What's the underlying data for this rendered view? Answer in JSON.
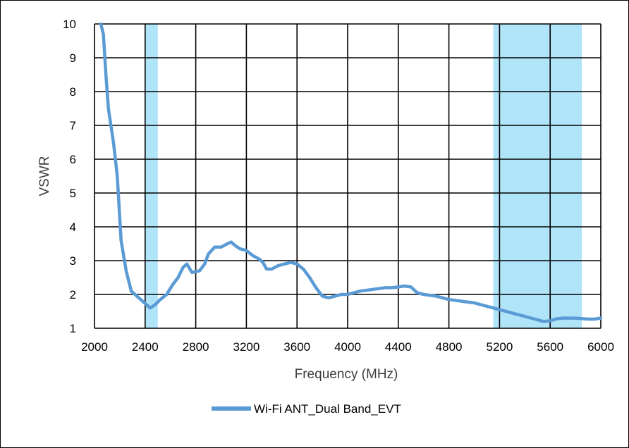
{
  "chart_data": {
    "type": "line",
    "xlabel": "Frequency (MHz)",
    "ylabel": "VSWR",
    "xlim": [
      2000,
      6000
    ],
    "ylim": [
      1,
      10
    ],
    "xticks": [
      2000,
      2400,
      2800,
      3200,
      3600,
      4000,
      4400,
      4800,
      5200,
      5600,
      6000
    ],
    "yticks": [
      1,
      2,
      3,
      4,
      5,
      6,
      7,
      8,
      9,
      10
    ],
    "grid": true,
    "legend_position": "bottom",
    "bands": [
      {
        "x": [
          2400,
          2500
        ],
        "color": "#B0E4F8"
      },
      {
        "x": [
          5150,
          5850
        ],
        "color": "#B0E4F8"
      }
    ],
    "series": [
      {
        "name": "Wi-Fi ANT_Dual Band_EVT",
        "color": "#5B9BD5",
        "x": [
          2050,
          2070,
          2090,
          2110,
          2150,
          2180,
          2210,
          2250,
          2290,
          2350,
          2410,
          2440,
          2480,
          2520,
          2570,
          2620,
          2660,
          2700,
          2730,
          2770,
          2830,
          2870,
          2900,
          2950,
          3000,
          3050,
          3080,
          3110,
          3150,
          3200,
          3250,
          3300,
          3330,
          3360,
          3400,
          3450,
          3500,
          3550,
          3600,
          3650,
          3700,
          3750,
          3800,
          3850,
          3900,
          3950,
          4000,
          4100,
          4200,
          4300,
          4350,
          4400,
          4450,
          4500,
          4550,
          4600,
          4700,
          4800,
          4900,
          5000,
          5100,
          5200,
          5300,
          5400,
          5500,
          5550,
          5600,
          5650,
          5700,
          5800,
          5900,
          5950,
          6000
        ],
        "values": [
          10.0,
          9.7,
          8.5,
          7.5,
          6.5,
          5.5,
          3.6,
          2.7,
          2.1,
          1.9,
          1.7,
          1.6,
          1.7,
          1.85,
          2.0,
          2.3,
          2.5,
          2.8,
          2.9,
          2.65,
          2.7,
          2.9,
          3.2,
          3.4,
          3.4,
          3.5,
          3.55,
          3.45,
          3.35,
          3.3,
          3.15,
          3.05,
          2.95,
          2.75,
          2.75,
          2.85,
          2.9,
          2.95,
          2.9,
          2.75,
          2.5,
          2.2,
          1.95,
          1.9,
          1.95,
          2.0,
          2.0,
          2.1,
          2.15,
          2.2,
          2.2,
          2.22,
          2.25,
          2.22,
          2.05,
          2.0,
          1.95,
          1.85,
          1.8,
          1.75,
          1.65,
          1.55,
          1.45,
          1.35,
          1.25,
          1.2,
          1.22,
          1.28,
          1.3,
          1.3,
          1.27,
          1.27,
          1.3
        ]
      }
    ]
  }
}
